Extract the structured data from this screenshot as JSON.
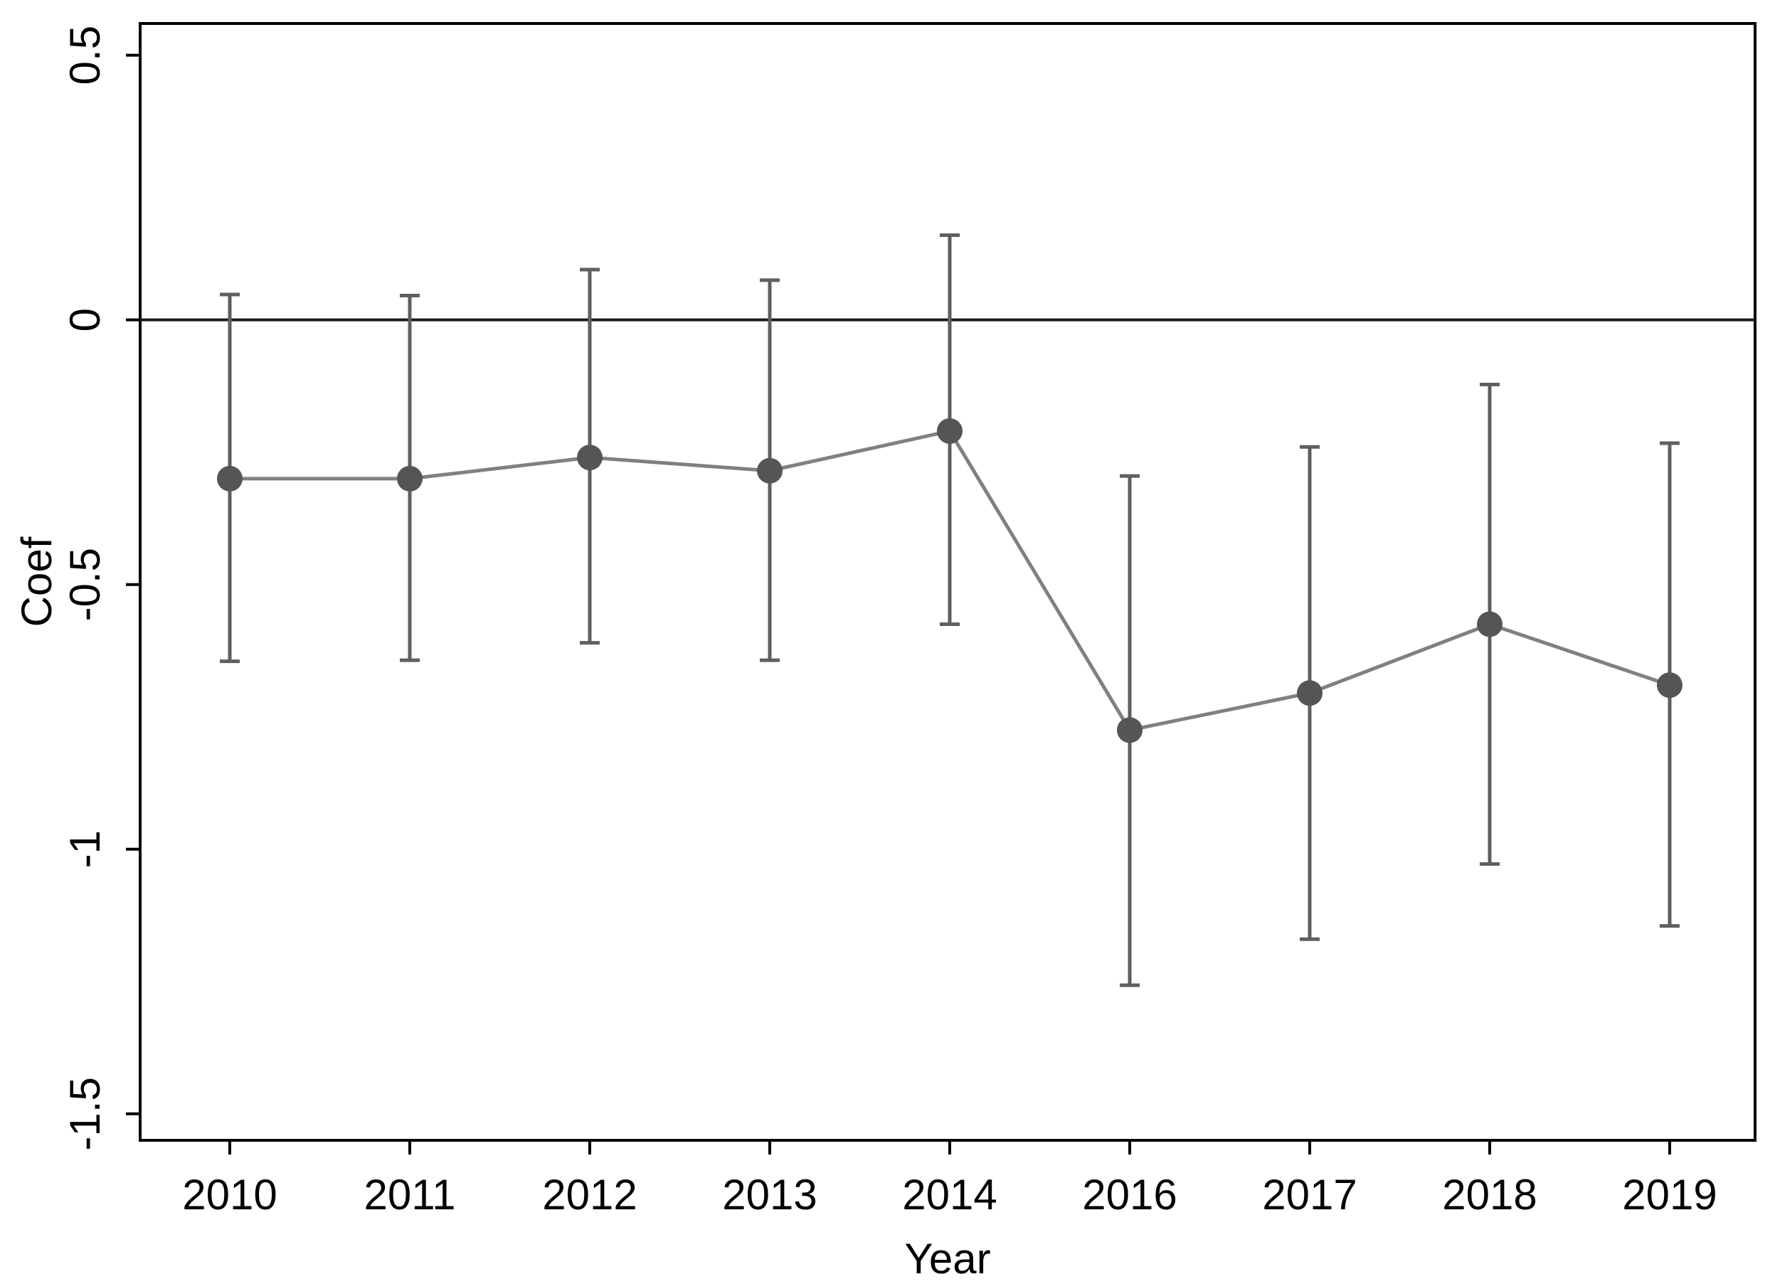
{
  "chart_data": {
    "type": "line",
    "title": "",
    "xlabel": "Year",
    "ylabel": "Coef",
    "categories": [
      "2010",
      "2011",
      "2012",
      "2013",
      "2014",
      "2016",
      "2017",
      "2018",
      "2019"
    ],
    "y_ticks": [
      "0.5",
      "0",
      "-0.5",
      "-1",
      "-1.5"
    ],
    "ylim": [
      -1.55,
      0.56
    ],
    "grid": false,
    "legend": "none",
    "reference_line": 0,
    "series": [
      {
        "values": [
          -0.3,
          -0.3,
          -0.26,
          -0.285,
          -0.21,
          -0.775,
          -0.705,
          -0.575,
          -0.69
        ],
        "ci_low": [
          -0.645,
          -0.643,
          -0.61,
          -0.643,
          -0.575,
          -1.257,
          -1.17,
          -1.028,
          -1.145
        ],
        "ci_high": [
          0.048,
          0.046,
          0.095,
          0.075,
          0.16,
          -0.295,
          -0.24,
          -0.122,
          -0.233
        ]
      }
    ],
    "colors": {
      "line": "#808080",
      "marker": "#555555",
      "error_bar": "#5f5f5f",
      "reference_line": "#1a1a1a",
      "frame": "#000000"
    }
  }
}
